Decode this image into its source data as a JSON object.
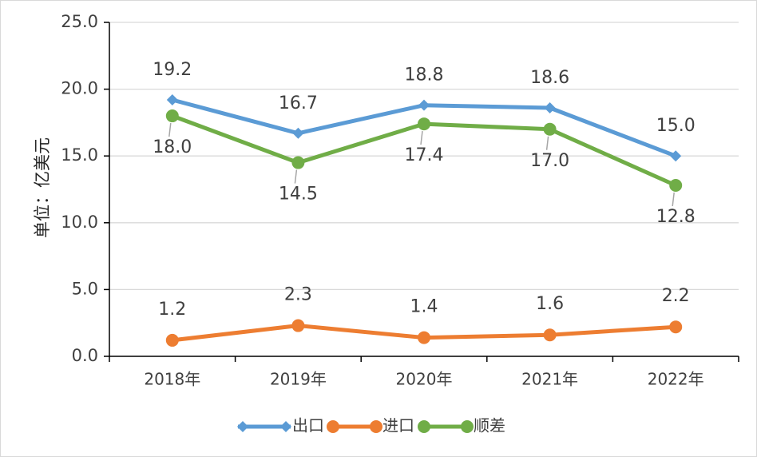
{
  "chart_data": {
    "type": "line",
    "ylabel": "单位：亿美元",
    "ylim": [
      0,
      25
    ],
    "yticks": [
      "0.0",
      "5.0",
      "10.0",
      "15.0",
      "20.0",
      "25.0"
    ],
    "categories": [
      "2018年",
      "2019年",
      "2020年",
      "2021年",
      "2022年"
    ],
    "grid": true,
    "legend_position": "bottom",
    "series": [
      {
        "name": "出口",
        "values": [
          19.2,
          16.7,
          18.8,
          18.6,
          15.0
        ],
        "labels": [
          "19.2",
          "16.7",
          "18.8",
          "18.6",
          "15.0"
        ],
        "color": "#5B9BD5",
        "marker": "diamond"
      },
      {
        "name": "进口",
        "values": [
          1.2,
          2.3,
          1.4,
          1.6,
          2.2
        ],
        "labels": [
          "1.2",
          "2.3",
          "1.4",
          "1.6",
          "2.2"
        ],
        "color": "#ED7D31",
        "marker": "circle"
      },
      {
        "name": "顺差",
        "values": [
          18.0,
          14.5,
          17.4,
          17.0,
          12.8
        ],
        "labels": [
          "18.0",
          "14.5",
          "17.4",
          "17.0",
          "12.8"
        ],
        "color": "#70AD47",
        "marker": "circle"
      }
    ]
  }
}
